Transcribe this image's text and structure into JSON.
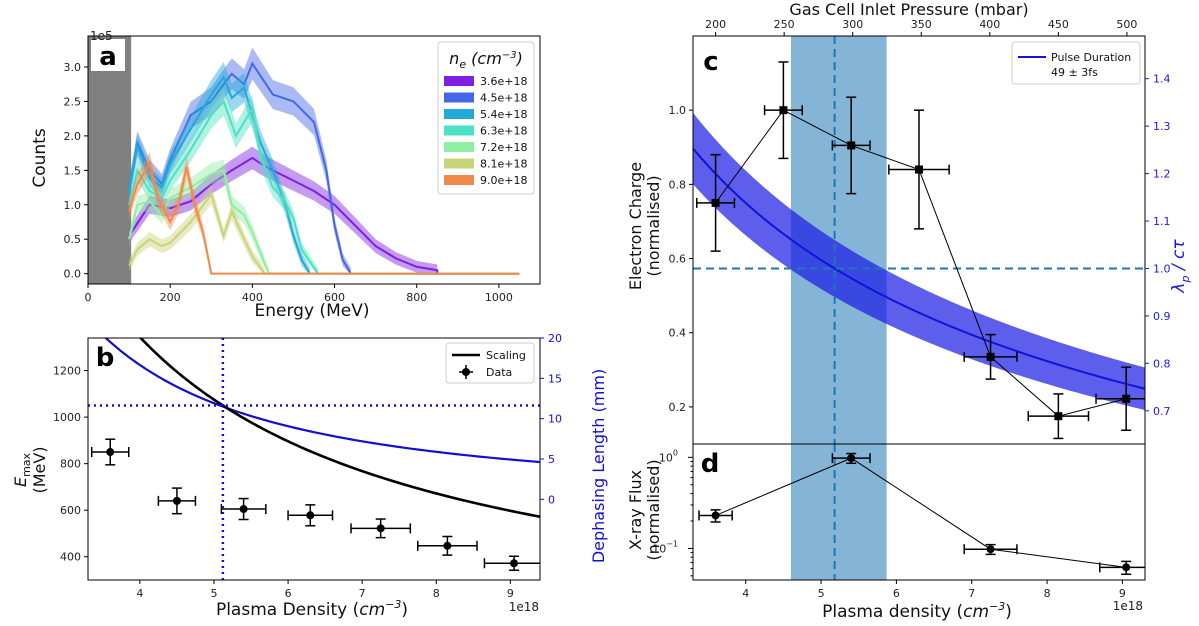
{
  "chart_data": [
    {
      "panel": "a",
      "type": "area",
      "xlabel": "Energy (MeV)",
      "ylabel": "Counts",
      "y_scale_label": "1e5",
      "xlim": [
        0,
        1100
      ],
      "ylim": [
        -0.15,
        3.45
      ],
      "xticks": [
        "0",
        "200",
        "400",
        "600",
        "800",
        "1000"
      ],
      "yticks": [
        "0.0",
        "0.5",
        "1.0",
        "1.5",
        "2.0",
        "2.5",
        "3.0"
      ],
      "shaded_region": [
        0,
        105
      ],
      "legend_title": "n_e (cm^-3)",
      "legend_loc": "upper right",
      "series": [
        {
          "name": "3.6e+18",
          "color": "#7f1fe0",
          "end": 850,
          "points": [
            [
              100,
              0.55
            ],
            [
              150,
              1.0
            ],
            [
              200,
              0.95
            ],
            [
              250,
              1.05
            ],
            [
              300,
              1.3
            ],
            [
              350,
              1.5
            ],
            [
              400,
              1.68
            ],
            [
              420,
              1.6
            ],
            [
              450,
              1.5
            ],
            [
              500,
              1.35
            ],
            [
              550,
              1.2
            ],
            [
              600,
              1.0
            ],
            [
              650,
              0.7
            ],
            [
              700,
              0.4
            ],
            [
              750,
              0.22
            ],
            [
              800,
              0.1
            ],
            [
              850,
              0.05
            ]
          ]
        },
        {
          "name": "4.5e+18",
          "color": "#4467e6",
          "end": 640,
          "points": [
            [
              100,
              1.2
            ],
            [
              120,
              1.9
            ],
            [
              150,
              1.5
            ],
            [
              180,
              1.3
            ],
            [
              200,
              1.65
            ],
            [
              250,
              2.3
            ],
            [
              300,
              2.5
            ],
            [
              330,
              2.75
            ],
            [
              350,
              2.9
            ],
            [
              380,
              2.75
            ],
            [
              400,
              3.05
            ],
            [
              450,
              2.6
            ],
            [
              500,
              2.5
            ],
            [
              550,
              2.2
            ],
            [
              580,
              1.5
            ],
            [
              600,
              0.7
            ],
            [
              620,
              0.2
            ],
            [
              640,
              0.0
            ]
          ]
        },
        {
          "name": "5.4e+18",
          "color": "#20aad8",
          "end": 540,
          "points": [
            [
              100,
              1.2
            ],
            [
              120,
              1.85
            ],
            [
              150,
              1.4
            ],
            [
              180,
              1.25
            ],
            [
              200,
              1.6
            ],
            [
              250,
              2.1
            ],
            [
              300,
              2.6
            ],
            [
              330,
              2.85
            ],
            [
              350,
              2.55
            ],
            [
              380,
              2.7
            ],
            [
              400,
              2.3
            ],
            [
              420,
              1.9
            ],
            [
              450,
              1.5
            ],
            [
              480,
              1.0
            ],
            [
              500,
              0.55
            ],
            [
              520,
              0.2
            ],
            [
              540,
              0.0
            ]
          ]
        },
        {
          "name": "6.3e+18",
          "color": "#4ee0c2",
          "end": 560,
          "points": [
            [
              100,
              1.0
            ],
            [
              120,
              1.5
            ],
            [
              150,
              1.2
            ],
            [
              180,
              1.1
            ],
            [
              200,
              1.35
            ],
            [
              250,
              1.8
            ],
            [
              300,
              2.3
            ],
            [
              330,
              2.5
            ],
            [
              360,
              2.0
            ],
            [
              400,
              2.4
            ],
            [
              420,
              1.7
            ],
            [
              450,
              1.25
            ],
            [
              480,
              1.05
            ],
            [
              500,
              0.8
            ],
            [
              520,
              0.35
            ],
            [
              560,
              0.0
            ]
          ]
        },
        {
          "name": "7.2e+18",
          "color": "#90eea0",
          "end": 440,
          "points": [
            [
              100,
              0.5
            ],
            [
              120,
              1.0
            ],
            [
              150,
              1.05
            ],
            [
              180,
              0.85
            ],
            [
              200,
              1.1
            ],
            [
              250,
              1.25
            ],
            [
              300,
              1.45
            ],
            [
              330,
              1.5
            ],
            [
              350,
              1.0
            ],
            [
              380,
              0.85
            ],
            [
              400,
              0.6
            ],
            [
              420,
              0.3
            ],
            [
              440,
              0.0
            ]
          ]
        },
        {
          "name": "8.1e+18",
          "color": "#c9d37a",
          "end": 430,
          "points": [
            [
              100,
              0.12
            ],
            [
              120,
              0.35
            ],
            [
              150,
              0.5
            ],
            [
              180,
              0.4
            ],
            [
              200,
              0.45
            ],
            [
              250,
              0.75
            ],
            [
              300,
              1.15
            ],
            [
              330,
              0.55
            ],
            [
              350,
              0.9
            ],
            [
              380,
              0.5
            ],
            [
              400,
              0.25
            ],
            [
              430,
              0.0
            ]
          ]
        },
        {
          "name": "9.0e+18",
          "color": "#f08a4b",
          "end": 300,
          "points": [
            [
              100,
              0.9
            ],
            [
              120,
              1.3
            ],
            [
              150,
              1.6
            ],
            [
              170,
              1.1
            ],
            [
              200,
              0.75
            ],
            [
              220,
              1.0
            ],
            [
              240,
              1.55
            ],
            [
              260,
              1.0
            ],
            [
              280,
              0.6
            ],
            [
              300,
              0.0
            ]
          ]
        }
      ]
    },
    {
      "panel": "b",
      "type": "scatter",
      "xlabel": "Plasma Density (cm^-3)",
      "x_scale_label": "1e18",
      "ylabel": "E_max (MeV)",
      "ylabel2": "Dephasing Length (mm)",
      "xlim": [
        3.3,
        9.4
      ],
      "ylim": [
        300,
        1340
      ],
      "y2lim": [
        -10,
        20
      ],
      "xticks": [
        "4",
        "5",
        "6",
        "7",
        "8",
        "9"
      ],
      "yticks": [
        "400",
        "600",
        "800",
        "1000",
        "1200"
      ],
      "y2ticks": [
        "0",
        "5",
        "10",
        "15",
        "20"
      ],
      "legend": [
        "Scaling",
        "Data"
      ],
      "legend_loc": "upper right",
      "vline_x": 5.12,
      "hline_y": 1050,
      "scaling_curve": "E = 1050 * (5.12 / n)",
      "dephasing_curve": "L = 11.5 * (5.12 / n)^1.5",
      "points": [
        {
          "x": 3.6,
          "y": 850,
          "xerr": 0.25,
          "yerr": 55
        },
        {
          "x": 4.5,
          "y": 640,
          "xerr": 0.25,
          "yerr": 55
        },
        {
          "x": 5.4,
          "y": 605,
          "xerr": 0.3,
          "yerr": 45
        },
        {
          "x": 6.3,
          "y": 578,
          "xerr": 0.3,
          "yerr": 45
        },
        {
          "x": 7.25,
          "y": 522,
          "xerr": 0.4,
          "yerr": 40
        },
        {
          "x": 8.15,
          "y": 447,
          "xerr": 0.4,
          "yerr": 40
        },
        {
          "x": 9.05,
          "y": 372,
          "xerr": 0.4,
          "yerr": 30
        }
      ]
    },
    {
      "panel": "c",
      "type": "line",
      "xlabel_top": "Gas Cell Inlet Pressure (mbar)",
      "xticks_top": [
        "200",
        "250",
        "300",
        "350",
        "400",
        "450",
        "500"
      ],
      "ylabel": "Electron Charge (normalised)",
      "ylabel2": "λ_p / cτ",
      "xlim": [
        3.3,
        9.3
      ],
      "ylim": [
        0.1,
        1.2
      ],
      "y2lim": [
        0.63,
        1.49
      ],
      "yticks": [
        "0.2",
        "0.4",
        "0.6",
        "0.8",
        "1.0"
      ],
      "y2ticks": [
        "0.7",
        "0.8",
        "0.9",
        "1.0",
        "1.1",
        "1.2",
        "1.3",
        "1.4"
      ],
      "legend": [
        "Pulse Duration",
        "49 ± 3fs"
      ],
      "legend_loc": "upper right",
      "band_x": [
        4.6,
        5.87
      ],
      "vline_x": 5.18,
      "hline_y2": 1.0,
      "ratio_curve": "r = 1.0 * (5.18 / n)^0.5",
      "points": [
        {
          "x": 3.6,
          "y": 0.75,
          "xerr": 0.25,
          "yerr": 0.13
        },
        {
          "x": 4.5,
          "y": 1.0,
          "xerr": 0.25,
          "yerr": 0.13
        },
        {
          "x": 5.4,
          "y": 0.905,
          "xerr": 0.25,
          "yerr": 0.13
        },
        {
          "x": 6.3,
          "y": 0.84,
          "xerr": 0.4,
          "yerr": 0.16
        },
        {
          "x": 7.25,
          "y": 0.335,
          "xerr": 0.35,
          "yerr": 0.06
        },
        {
          "x": 8.15,
          "y": 0.175,
          "xerr": 0.4,
          "yerr": 0.06
        },
        {
          "x": 9.05,
          "y": 0.222,
          "xerr": 0.4,
          "yerr": 0.085
        }
      ]
    },
    {
      "panel": "d",
      "type": "line",
      "xlabel": "Plasma density (cm^-3)",
      "x_scale_label": "1e18",
      "ylabel": "X-ray Flux (normalised)",
      "y_scale": "log",
      "xlim": [
        3.3,
        9.3
      ],
      "ylim": [
        0.045,
        1.4
      ],
      "xticks": [
        "4",
        "5",
        "6",
        "7",
        "8",
        "9"
      ],
      "points": [
        {
          "x": 3.6,
          "y": 0.23,
          "xerr": 0.22,
          "yerr": 0.035
        },
        {
          "x": 5.4,
          "y": 0.98,
          "xerr": 0.25,
          "yerr": 0.12
        },
        {
          "x": 7.25,
          "y": 0.098,
          "xerr": 0.35,
          "yerr": 0.012
        },
        {
          "x": 9.05,
          "y": 0.062,
          "xerr": 0.35,
          "yerr": 0.01
        }
      ]
    }
  ],
  "labels": {
    "panel_a": "a",
    "panel_b": "b",
    "panel_c": "c",
    "panel_d": "d",
    "a_scale": "1e5",
    "b_scale": "1e18",
    "d_scale": "1e18",
    "a_xlabel": "Energy (MeV)",
    "a_ylabel": "Counts",
    "b_xlabel": "Plasma Density (",
    "b_ylabel_line1": "E",
    "b_ylabel_line2": "(MeV)",
    "b_ylabel2": "Dephasing Length (mm)",
    "c_top_label": "Gas Cell Inlet Pressure (mbar)",
    "c_ylabel_line1": "Electron Charge",
    "c_ylabel_line2": "(normalised)",
    "c_ylabel2": "λ",
    "d_xlabel": "Plasma density (",
    "d_ylabel_line1": "X-ray Flux",
    "d_ylabel_line2": "(normalised)",
    "legend_a_title": "n",
    "legend_b_scaling": "Scaling",
    "legend_b_data": "Data",
    "legend_c_line1": "Pulse Duration",
    "legend_c_line2": "49 ± 3fs"
  }
}
